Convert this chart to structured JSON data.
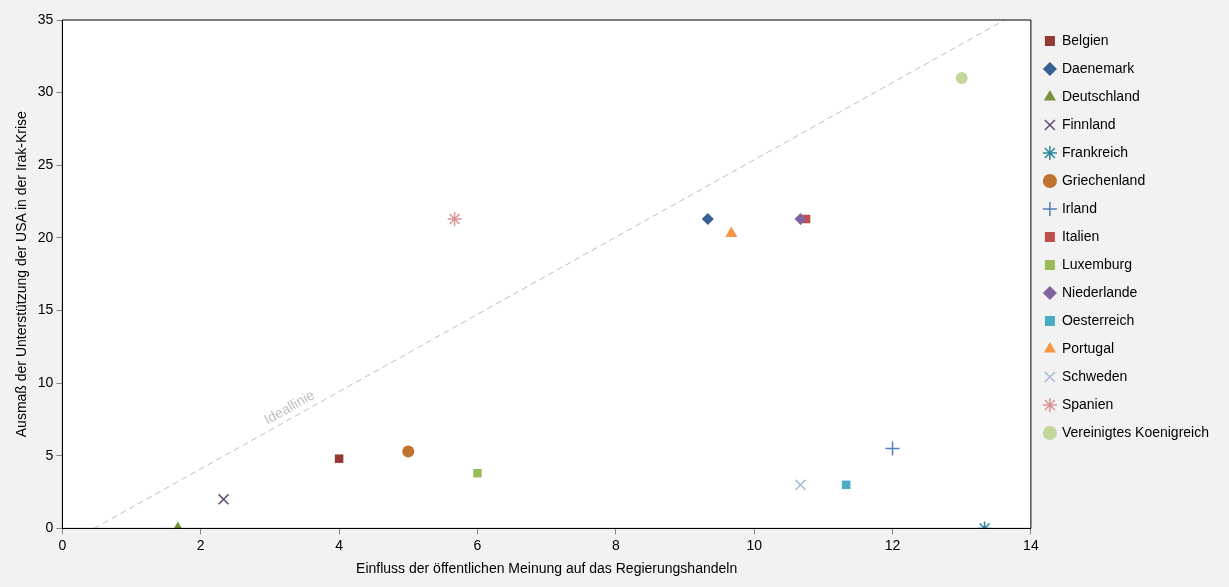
{
  "chart_data": {
    "type": "scatter",
    "xlabel": "Einfluss der öffentlichen Meinung auf das Regierungshandeln",
    "ylabel": "Ausmaß der Unterstützung der USA in der Irak-Krise",
    "xlim": [
      0,
      14
    ],
    "xticks": [
      0,
      2,
      4,
      6,
      8,
      10,
      12,
      14
    ],
    "ylim": [
      0,
      35
    ],
    "yticks": [
      0,
      5,
      10,
      15,
      20,
      25,
      30,
      35
    ],
    "grid": false,
    "legend": "right",
    "series": [
      {
        "name": "Belgien",
        "color": "#953735",
        "marker": "square",
        "x": [
          4.0
        ],
        "values": [
          4.8
        ]
      },
      {
        "name": "Daenemark",
        "color": "#376092",
        "marker": "diamond",
        "x": [
          9.33
        ],
        "values": [
          21.3
        ]
      },
      {
        "name": "Deutschland",
        "color": "#77933c",
        "marker": "triangle",
        "x": [
          1.67
        ],
        "values": [
          0
        ]
      },
      {
        "name": "Finnland",
        "color": "#604a7b",
        "x": [
          2.33
        ],
        "values": [
          2.0
        ]
      },
      {
        "name": "Frankreich",
        "color": "#31859c",
        "marker": "cross",
        "x": [
          13.33
        ],
        "values": [
          0
        ]
      },
      {
        "name": "Griechenland",
        "color": "#c0732f",
        "marker": "circle",
        "x": [
          5.0
        ],
        "values": [
          5.3
        ]
      },
      {
        "name": "Irland",
        "color": "#4f81bd",
        "marker": "plus",
        "x": [
          12.0
        ],
        "values": [
          5.5
        ]
      },
      {
        "name": "Italien",
        "color": "#c0504d",
        "marker": "square",
        "x": [
          10.75
        ],
        "values": [
          21.3
        ]
      },
      {
        "name": "Luxemburg",
        "color": "#9bbb59",
        "marker": "square",
        "x": [
          6.0
        ],
        "values": [
          3.8
        ]
      },
      {
        "name": "Niederlande",
        "color": "#8064a2",
        "marker": "diamond",
        "x": [
          10.67
        ],
        "values": [
          21.3
        ]
      },
      {
        "name": "Oesterreich",
        "color": "#4bacc6",
        "marker": "square",
        "x": [
          11.33
        ],
        "values": [
          3.0
        ]
      },
      {
        "name": "Portugal",
        "color": "#f79646",
        "marker": "triangle",
        "x": [
          9.67
        ],
        "values": [
          20.3
        ]
      },
      {
        "name": "Schweden",
        "color": "#a7b9db",
        "x": [
          10.67
        ],
        "values": [
          3.0
        ]
      },
      {
        "name": "Spanien",
        "color": "#d99694",
        "marker": "cross",
        "x": [
          5.67
        ],
        "values": [
          21.3
        ]
      },
      {
        "name": "Vereinigtes Koenigreich",
        "color": "#c3d69b",
        "marker": "circle",
        "x": [
          13.0
        ],
        "values": [
          31.0
        ]
      },
      {
        "name": "Ideallinie",
        "type": "line",
        "color": "#bfbfbf",
        "line_style": "dashed",
        "marker": "none",
        "x": [
          0.46,
          13.62
        ],
        "values": [
          0,
          35
        ]
      }
    ]
  }
}
